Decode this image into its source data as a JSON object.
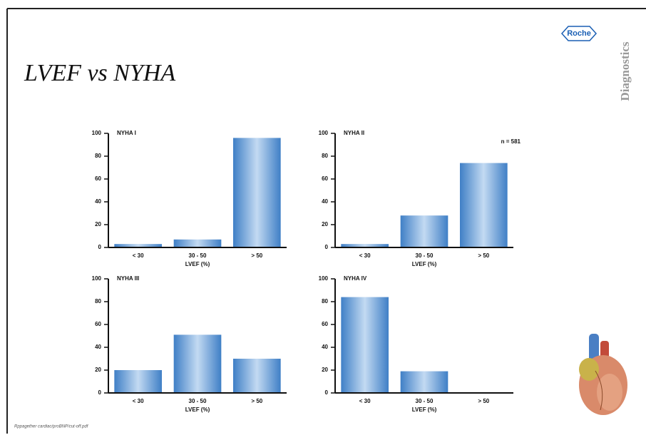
{
  "slide": {
    "title": "LVEF vs NYHA",
    "logo": "Roche",
    "brand": "Diagnostics",
    "footnote": "Rppagether cardiac/proBNP/cut-off.pdf"
  },
  "chart_data": [
    {
      "type": "bar",
      "title": "NYHA I",
      "x_label": "LVEF (%)",
      "categories": [
        "< 30",
        "30 - 50",
        "> 50"
      ],
      "values": [
        3,
        7,
        96
      ],
      "color": "#3f7fc6",
      "ylim": [
        0,
        100
      ],
      "yticks": [
        0,
        20,
        40,
        60,
        80,
        100
      ]
    },
    {
      "type": "bar",
      "title": "NYHA II",
      "annotation": "n = 581",
      "x_label": "LVEF (%)",
      "categories": [
        "< 30",
        "30 - 50",
        "> 50"
      ],
      "values": [
        3,
        28,
        74
      ],
      "color": "#3f7fc6",
      "ylim": [
        0,
        100
      ],
      "yticks": [
        0,
        20,
        40,
        60,
        80,
        100
      ]
    },
    {
      "type": "bar",
      "title": "NYHA III",
      "x_label": "LVEF (%)",
      "categories": [
        "< 30",
        "30 - 50",
        "> 50"
      ],
      "values": [
        20,
        51,
        30
      ],
      "color": "#3f7fc6",
      "ylim": [
        0,
        100
      ],
      "yticks": [
        0,
        20,
        40,
        60,
        80,
        100
      ]
    },
    {
      "type": "bar",
      "title": "NYHA IV",
      "x_label": "LVEF (%)",
      "categories": [
        "< 30",
        "30 - 50",
        "> 50"
      ],
      "values": [
        84,
        19,
        0
      ],
      "color": "#3f7fc6",
      "ylim": [
        0,
        100
      ],
      "yticks": [
        0,
        20,
        40,
        60,
        80,
        100
      ]
    }
  ]
}
